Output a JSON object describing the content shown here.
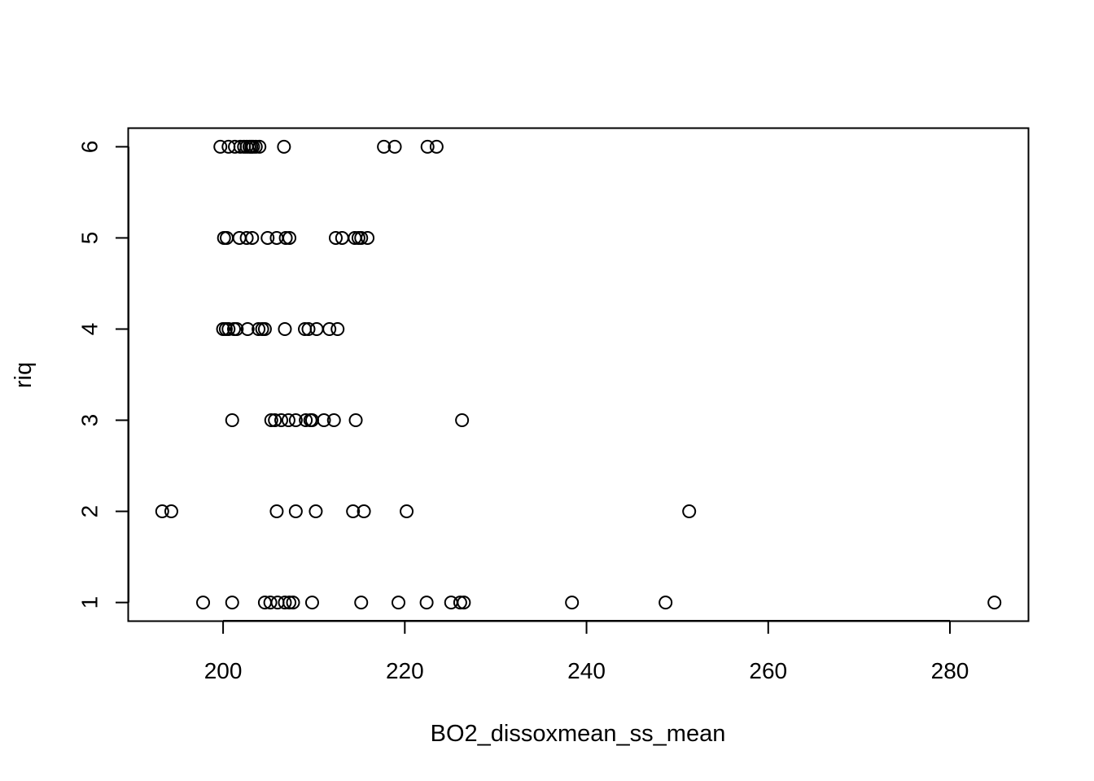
{
  "chart_data": {
    "type": "scatter",
    "xlabel": "BO2_dissoxmean_ss_mean",
    "ylabel": "riq",
    "xlim": [
      189.6,
      288.6
    ],
    "ylim": [
      0.8,
      6.2
    ],
    "x_ticks": [
      200,
      220,
      240,
      260,
      280
    ],
    "y_ticks": [
      1,
      2,
      3,
      4,
      5,
      6
    ],
    "grid": false,
    "marker": "open-circle",
    "points": [
      {
        "x": 199.7,
        "y": 6
      },
      {
        "x": 200.6,
        "y": 6
      },
      {
        "x": 201.3,
        "y": 6
      },
      {
        "x": 201.9,
        "y": 6
      },
      {
        "x": 202.3,
        "y": 6
      },
      {
        "x": 202.6,
        "y": 6
      },
      {
        "x": 202.9,
        "y": 6
      },
      {
        "x": 203.1,
        "y": 6
      },
      {
        "x": 203.3,
        "y": 6
      },
      {
        "x": 203.6,
        "y": 6
      },
      {
        "x": 204.0,
        "y": 6
      },
      {
        "x": 206.7,
        "y": 6
      },
      {
        "x": 217.7,
        "y": 6
      },
      {
        "x": 218.9,
        "y": 6
      },
      {
        "x": 222.5,
        "y": 6
      },
      {
        "x": 223.5,
        "y": 6
      },
      {
        "x": 200.1,
        "y": 5
      },
      {
        "x": 200.4,
        "y": 5
      },
      {
        "x": 201.8,
        "y": 5
      },
      {
        "x": 202.6,
        "y": 5
      },
      {
        "x": 203.2,
        "y": 5
      },
      {
        "x": 204.9,
        "y": 5
      },
      {
        "x": 205.9,
        "y": 5
      },
      {
        "x": 206.9,
        "y": 5
      },
      {
        "x": 207.3,
        "y": 5
      },
      {
        "x": 212.4,
        "y": 5
      },
      {
        "x": 213.1,
        "y": 5
      },
      {
        "x": 214.5,
        "y": 5
      },
      {
        "x": 214.9,
        "y": 5
      },
      {
        "x": 215.2,
        "y": 5
      },
      {
        "x": 215.9,
        "y": 5
      },
      {
        "x": 200.0,
        "y": 4
      },
      {
        "x": 200.3,
        "y": 4
      },
      {
        "x": 200.6,
        "y": 4
      },
      {
        "x": 201.2,
        "y": 4
      },
      {
        "x": 201.5,
        "y": 4
      },
      {
        "x": 202.7,
        "y": 4
      },
      {
        "x": 203.9,
        "y": 4
      },
      {
        "x": 204.3,
        "y": 4
      },
      {
        "x": 204.6,
        "y": 4
      },
      {
        "x": 206.8,
        "y": 4
      },
      {
        "x": 209.0,
        "y": 4
      },
      {
        "x": 209.4,
        "y": 4
      },
      {
        "x": 210.3,
        "y": 4
      },
      {
        "x": 211.7,
        "y": 4
      },
      {
        "x": 212.6,
        "y": 4
      },
      {
        "x": 201.0,
        "y": 3
      },
      {
        "x": 205.3,
        "y": 3
      },
      {
        "x": 205.7,
        "y": 3
      },
      {
        "x": 206.4,
        "y": 3
      },
      {
        "x": 207.2,
        "y": 3
      },
      {
        "x": 208.0,
        "y": 3
      },
      {
        "x": 209.1,
        "y": 3
      },
      {
        "x": 209.6,
        "y": 3
      },
      {
        "x": 209.8,
        "y": 3
      },
      {
        "x": 211.1,
        "y": 3
      },
      {
        "x": 212.2,
        "y": 3
      },
      {
        "x": 214.6,
        "y": 3
      },
      {
        "x": 226.3,
        "y": 3
      },
      {
        "x": 193.3,
        "y": 2
      },
      {
        "x": 194.3,
        "y": 2
      },
      {
        "x": 205.9,
        "y": 2
      },
      {
        "x": 208.0,
        "y": 2
      },
      {
        "x": 210.2,
        "y": 2
      },
      {
        "x": 214.3,
        "y": 2
      },
      {
        "x": 215.5,
        "y": 2
      },
      {
        "x": 220.2,
        "y": 2
      },
      {
        "x": 251.3,
        "y": 2
      },
      {
        "x": 197.8,
        "y": 1
      },
      {
        "x": 201.0,
        "y": 1
      },
      {
        "x": 204.6,
        "y": 1
      },
      {
        "x": 205.2,
        "y": 1
      },
      {
        "x": 206.0,
        "y": 1
      },
      {
        "x": 206.8,
        "y": 1
      },
      {
        "x": 207.3,
        "y": 1
      },
      {
        "x": 207.7,
        "y": 1
      },
      {
        "x": 209.8,
        "y": 1
      },
      {
        "x": 215.2,
        "y": 1
      },
      {
        "x": 219.3,
        "y": 1
      },
      {
        "x": 222.4,
        "y": 1
      },
      {
        "x": 225.1,
        "y": 1
      },
      {
        "x": 226.1,
        "y": 1
      },
      {
        "x": 226.5,
        "y": 1
      },
      {
        "x": 238.4,
        "y": 1
      },
      {
        "x": 248.7,
        "y": 1
      },
      {
        "x": 284.9,
        "y": 1
      }
    ]
  }
}
